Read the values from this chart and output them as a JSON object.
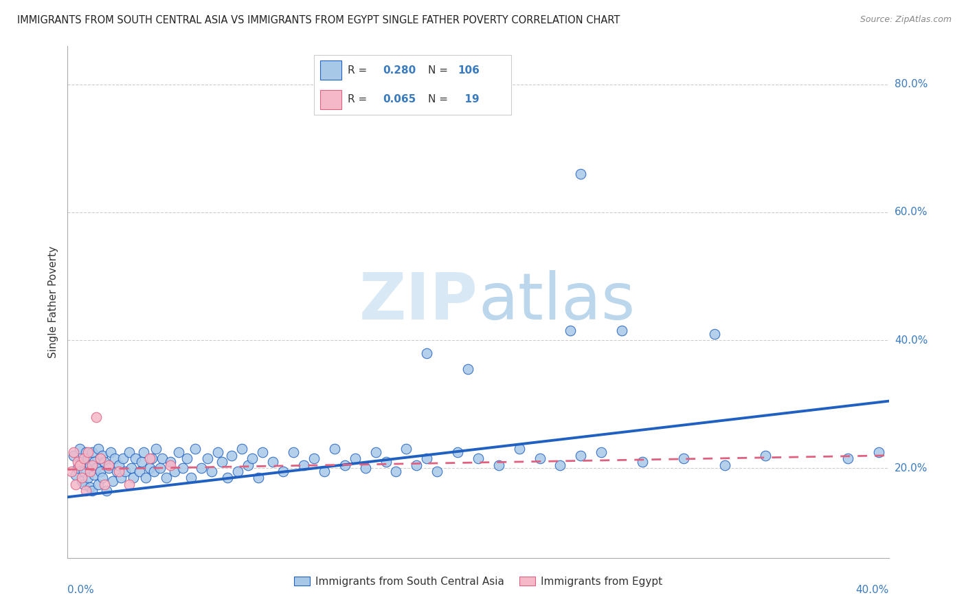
{
  "title": "IMMIGRANTS FROM SOUTH CENTRAL ASIA VS IMMIGRANTS FROM EGYPT SINGLE FATHER POVERTY CORRELATION CHART",
  "source": "Source: ZipAtlas.com",
  "ylabel": "Single Father Poverty",
  "yticks": [
    "80.0%",
    "60.0%",
    "40.0%",
    "20.0%"
  ],
  "ytick_vals": [
    0.8,
    0.6,
    0.4,
    0.2
  ],
  "xlim": [
    0.0,
    0.4
  ],
  "ylim": [
    0.06,
    0.86
  ],
  "blue_color": "#a8c8e8",
  "pink_color": "#f5b8c8",
  "line_blue": "#2060c0",
  "line_pink": "#e06080",
  "watermark_color": "#c0d8f0",
  "watermark_color2": "#7ab0d8",
  "blue_x": [
    0.003,
    0.004,
    0.005,
    0.006,
    0.007,
    0.007,
    0.008,
    0.008,
    0.009,
    0.01,
    0.01,
    0.011,
    0.011,
    0.012,
    0.012,
    0.013,
    0.013,
    0.014,
    0.015,
    0.015,
    0.016,
    0.017,
    0.017,
    0.018,
    0.019,
    0.02,
    0.021,
    0.022,
    0.023,
    0.024,
    0.025,
    0.026,
    0.027,
    0.028,
    0.03,
    0.031,
    0.032,
    0.033,
    0.035,
    0.036,
    0.037,
    0.038,
    0.04,
    0.041,
    0.042,
    0.043,
    0.045,
    0.046,
    0.048,
    0.05,
    0.052,
    0.054,
    0.056,
    0.058,
    0.06,
    0.062,
    0.065,
    0.068,
    0.07,
    0.073,
    0.075,
    0.078,
    0.08,
    0.083,
    0.085,
    0.088,
    0.09,
    0.093,
    0.095,
    0.1,
    0.105,
    0.11,
    0.115,
    0.12,
    0.125,
    0.13,
    0.135,
    0.14,
    0.145,
    0.15,
    0.155,
    0.16,
    0.165,
    0.17,
    0.175,
    0.18,
    0.19,
    0.2,
    0.21,
    0.22,
    0.23,
    0.24,
    0.25,
    0.26,
    0.28,
    0.3,
    0.32,
    0.34,
    0.38,
    0.395,
    0.175,
    0.195,
    0.245,
    0.27,
    0.315,
    0.25
  ],
  "blue_y": [
    0.22,
    0.19,
    0.2,
    0.23,
    0.18,
    0.21,
    0.175,
    0.195,
    0.225,
    0.185,
    0.215,
    0.17,
    0.205,
    0.165,
    0.225,
    0.19,
    0.21,
    0.2,
    0.175,
    0.23,
    0.195,
    0.185,
    0.22,
    0.21,
    0.165,
    0.2,
    0.225,
    0.18,
    0.215,
    0.195,
    0.205,
    0.185,
    0.215,
    0.195,
    0.225,
    0.2,
    0.185,
    0.215,
    0.195,
    0.21,
    0.225,
    0.185,
    0.2,
    0.215,
    0.195,
    0.23,
    0.2,
    0.215,
    0.185,
    0.21,
    0.195,
    0.225,
    0.2,
    0.215,
    0.185,
    0.23,
    0.2,
    0.215,
    0.195,
    0.225,
    0.21,
    0.185,
    0.22,
    0.195,
    0.23,
    0.205,
    0.215,
    0.185,
    0.225,
    0.21,
    0.195,
    0.225,
    0.205,
    0.215,
    0.195,
    0.23,
    0.205,
    0.215,
    0.2,
    0.225,
    0.21,
    0.195,
    0.23,
    0.205,
    0.215,
    0.195,
    0.225,
    0.215,
    0.205,
    0.23,
    0.215,
    0.205,
    0.22,
    0.225,
    0.21,
    0.215,
    0.205,
    0.22,
    0.215,
    0.225,
    0.38,
    0.355,
    0.415,
    0.415,
    0.41,
    0.66
  ],
  "pink_x": [
    0.002,
    0.003,
    0.004,
    0.005,
    0.006,
    0.007,
    0.008,
    0.009,
    0.01,
    0.011,
    0.012,
    0.014,
    0.016,
    0.018,
    0.02,
    0.025,
    0.03,
    0.04,
    0.05
  ],
  "pink_y": [
    0.195,
    0.225,
    0.175,
    0.21,
    0.205,
    0.185,
    0.215,
    0.165,
    0.225,
    0.195,
    0.205,
    0.28,
    0.215,
    0.175,
    0.205,
    0.195,
    0.175,
    0.215,
    0.205
  ],
  "blue_line_x0": 0.0,
  "blue_line_y0": 0.155,
  "blue_line_x1": 0.4,
  "blue_line_y1": 0.305,
  "pink_line_x0": 0.0,
  "pink_line_y0": 0.198,
  "pink_line_x1": 0.4,
  "pink_line_y1": 0.22
}
